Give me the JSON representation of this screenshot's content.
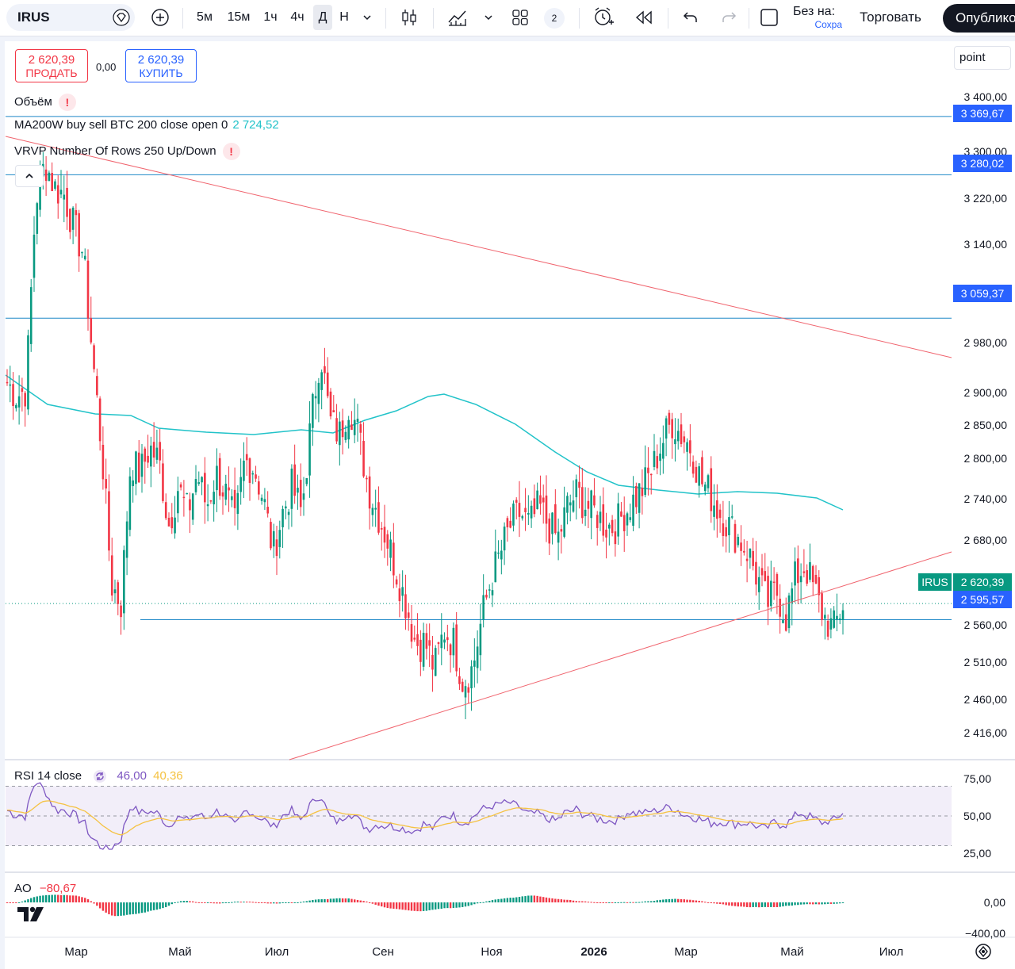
{
  "toolbar": {
    "symbol": "IRUS",
    "intervals": [
      "5м",
      "15м",
      "1ч",
      "4ч",
      "Д",
      "Н"
    ],
    "active_interval": "Д",
    "layout_count": "2",
    "save_name": "Без на:",
    "save_status": "Сохра",
    "trade_label": "Торговать",
    "publish_label": "Опублико"
  },
  "order_panel": {
    "sell_price": "2 620,39",
    "sell_label": "ПРОДАТЬ",
    "spread": "0,00",
    "buy_price": "2 620,39",
    "buy_label": "КУПИТЬ"
  },
  "legends": {
    "volume": "Объём",
    "ma": "MA200W buy sell BTC 200 close open 0",
    "ma_value": "2 724,52",
    "vrvp": "VRVP Number Of Rows 250 Up/Down",
    "point": "point"
  },
  "price_axis": {
    "ticks": [
      "3 400,00",
      "3 300,00",
      "3 220,00",
      "3 140,00",
      "2 980,00",
      "2 900,00",
      "2 850,00",
      "2 800,00",
      "2 740,00",
      "2 680,00",
      "2 560,00",
      "2 510,00",
      "2 460,00",
      "2 416,00"
    ],
    "tags": {
      "l1": "3 369,67",
      "l2": "3 280,02",
      "l3": "3 059,37",
      "current": "2 620,39",
      "l4": "2 595,57",
      "symbol": "IRUS"
    }
  },
  "rsi": {
    "label": "RSI 14 close",
    "value": "46,00",
    "ma_value": "40,36",
    "ticks": [
      "75,00",
      "50,00",
      "25,00"
    ]
  },
  "ao": {
    "label": "AO",
    "value": "−80,67",
    "ticks": [
      "0,00",
      "−400,00"
    ]
  },
  "time_axis": [
    "Мар",
    "Май",
    "Июл",
    "Сен",
    "Ноя",
    "2026",
    "Мар",
    "Май",
    "Июл"
  ],
  "colors": {
    "up": "#089981",
    "down": "#f23645",
    "ma": "#22c3c9",
    "trend": "#f0646e",
    "hline": "#1e88c7",
    "rsi": "#7e57c2",
    "rsi_ma": "#f5c242"
  },
  "chart_data": {
    "type": "candlestick",
    "symbol": "IRUS",
    "interval": "Д",
    "ylim": [
      2416,
      3400
    ],
    "x": [
      "Мар",
      "Май",
      "Июл",
      "Сен",
      "Ноя",
      "2026",
      "Мар",
      "Май",
      "Июл"
    ],
    "close_path": [
      2960,
      2940,
      2950,
      3240,
      3300,
      3260,
      3250,
      3200,
      3160,
      3000,
      2850,
      2650,
      2620,
      2840,
      2820,
      2860,
      2840,
      2740,
      2800,
      2760,
      2820,
      2770,
      2820,
      2790,
      2740,
      2840,
      2830,
      2780,
      2700,
      2760,
      2800,
      2760,
      2900,
      3010,
      2900,
      2880,
      2930,
      2880,
      2800,
      2760,
      2720,
      2670,
      2620,
      2560,
      2560,
      2520,
      2580,
      2560,
      2500,
      2520,
      2600,
      2660,
      2700,
      2740,
      2760,
      2740,
      2770,
      2740,
      2720,
      2770,
      2790,
      2770,
      2760,
      2740,
      2740,
      2760,
      2780,
      2800,
      2830,
      2870,
      2900,
      2880,
      2860,
      2810,
      2790,
      2760,
      2740,
      2720,
      2700,
      2660,
      2620,
      2640,
      2600,
      2660,
      2680,
      2640,
      2600,
      2580,
      2620
    ],
    "horizontal_levels": [
      3369.67,
      3280.02,
      3059.37,
      2595.57
    ],
    "current_price": 2620.39,
    "ma200w_value": 2724.52,
    "rsi_value": 46.0,
    "rsi_ma_value": 40.36,
    "ao_value": -80.67
  }
}
